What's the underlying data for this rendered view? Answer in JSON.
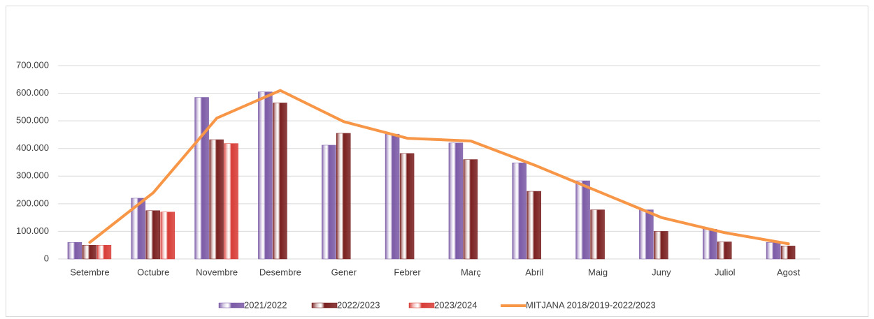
{
  "chart_data": {
    "type": "bar",
    "categories": [
      "Setembre",
      "Octubre",
      "Novembre",
      "Desembre",
      "Gener",
      "Febrer",
      "Març",
      "Abril",
      "Maig",
      "Juny",
      "Juliol",
      "Agost"
    ],
    "series": [
      {
        "name": "2021/2022",
        "color": "#7b5aa6",
        "values": [
          60000,
          220000,
          585000,
          605000,
          412000,
          452000,
          420000,
          348000,
          283000,
          178000,
          108000,
          60000
        ]
      },
      {
        "name": "2022/2023",
        "color": "#7a1f1f",
        "values": [
          50000,
          175000,
          432000,
          565000,
          455000,
          382000,
          360000,
          245000,
          178000,
          100000,
          62000,
          47000
        ]
      },
      {
        "name": "2023/2024",
        "color": "#d83c36",
        "values": [
          50000,
          170000,
          418000,
          null,
          null,
          null,
          null,
          null,
          null,
          null,
          null,
          null
        ]
      },
      {
        "name": "MITJANA 2018/2019-2022/2023",
        "type": "line",
        "color": "#f79646",
        "values": [
          60000,
          240000,
          510000,
          610000,
          497000,
          437000,
          427000,
          340000,
          245000,
          150000,
          95000,
          55000
        ]
      }
    ],
    "ylim": [
      0,
      700000
    ],
    "yticks": [
      0,
      {
        "value": 100000,
        "label": "100.000"
      },
      {
        "value": 200000,
        "label": "200.000"
      },
      {
        "value": 300000,
        "label": "300.000"
      },
      {
        "value": 400000,
        "label": "400.000"
      },
      {
        "value": 500000,
        "label": "500.000"
      },
      {
        "value": 600000,
        "label": "600.000"
      },
      {
        "value": 700000,
        "label": "700.000"
      }
    ],
    "grid": true,
    "legend": "bottom"
  }
}
